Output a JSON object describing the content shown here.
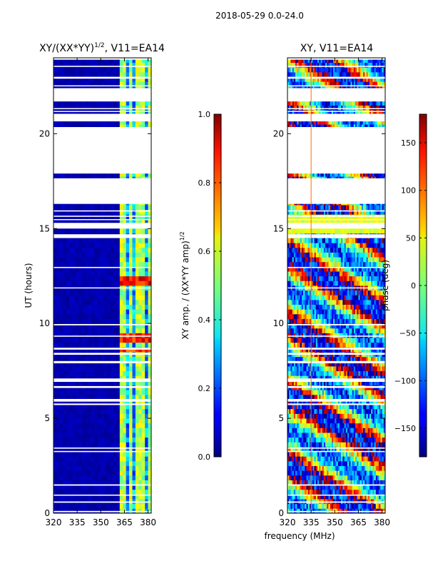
{
  "figure_title": "2018-05-29 0.0-24.0",
  "xlabel_shared": "frequency (MHz)",
  "chart_data": [
    {
      "type": "heatmap",
      "title": "XY/(XX*YY)^{1/2}, V11=EA14",
      "title_main": "XY/(XX*YY)",
      "title_sup": "1/2",
      "title_tail": ", V11=EA14",
      "ylabel": "UT (hours)",
      "x_range": [
        320,
        382
      ],
      "y_range": [
        0,
        24
      ],
      "x_ticks": [
        320,
        335,
        350,
        365,
        380
      ],
      "y_ticks": [
        0,
        5,
        10,
        15,
        20
      ],
      "colorbar": {
        "label": "XY amp. / (XX*YY amp)",
        "label_sup": "1/2",
        "range": [
          0.0,
          1.0
        ],
        "ticks": [
          "0.0",
          "0.2",
          "0.4",
          "0.6",
          "0.8",
          "1.0"
        ],
        "tick_values": [
          0.0,
          0.2,
          0.4,
          0.6,
          0.8,
          1.0
        ]
      },
      "flagged_hours": [
        [
          0.05,
          0.12
        ],
        [
          0.55,
          0.62
        ],
        [
          0.92,
          0.98
        ],
        [
          1.45,
          1.52
        ],
        [
          3.22,
          3.28
        ],
        [
          3.4,
          3.46
        ],
        [
          5.7,
          5.78
        ],
        [
          5.88,
          6.02
        ],
        [
          6.6,
          6.7
        ],
        [
          6.92,
          7.1
        ],
        [
          7.9,
          8.02
        ],
        [
          8.35,
          8.45
        ],
        [
          8.62,
          8.72
        ],
        [
          9.3,
          9.36
        ],
        [
          9.9,
          9.97
        ],
        [
          11.85,
          11.9
        ],
        [
          12.92,
          12.98
        ],
        [
          14.5,
          14.7
        ],
        [
          15.0,
          15.3
        ],
        [
          15.45,
          15.5
        ],
        [
          15.62,
          15.68
        ],
        [
          15.9,
          15.96
        ],
        [
          16.3,
          17.65
        ],
        [
          17.9,
          20.35
        ],
        [
          20.65,
          21.05
        ],
        [
          21.15,
          21.2
        ],
        [
          21.3,
          21.35
        ],
        [
          21.7,
          22.4
        ],
        [
          22.5,
          22.55
        ],
        [
          22.9,
          23.0
        ],
        [
          23.52,
          23.58
        ],
        [
          23.9,
          24.0
        ]
      ],
      "band_channels_mhz": [
        364,
        369,
        374,
        377,
        381
      ],
      "value_background": 0.02,
      "value_band": 0.35
    },
    {
      "type": "heatmap",
      "title": "XY, V11=EA14",
      "ylabel": "",
      "x_range": [
        320,
        382
      ],
      "y_range": [
        0,
        24
      ],
      "x_ticks": [
        320,
        335,
        350,
        365,
        380
      ],
      "y_ticks": [
        0,
        5,
        10,
        15,
        20
      ],
      "colorbar": {
        "label": "phase (deg)",
        "range": [
          -180,
          180
        ],
        "ticks": [
          "150",
          "100",
          "50",
          "0",
          "−50",
          "−100",
          "−150"
        ],
        "tick_values": [
          150,
          100,
          50,
          0,
          -50,
          -100,
          -150
        ]
      },
      "flagged_hours": [
        [
          0.05,
          0.12
        ],
        [
          0.55,
          0.62
        ],
        [
          0.92,
          0.98
        ],
        [
          1.45,
          1.52
        ],
        [
          3.22,
          3.28
        ],
        [
          3.4,
          3.46
        ],
        [
          5.7,
          5.78
        ],
        [
          5.88,
          6.02
        ],
        [
          6.6,
          6.7
        ],
        [
          6.92,
          7.1
        ],
        [
          7.9,
          8.02
        ],
        [
          8.35,
          8.45
        ],
        [
          8.62,
          8.72
        ],
        [
          9.3,
          9.36
        ],
        [
          9.9,
          9.97
        ],
        [
          11.85,
          11.9
        ],
        [
          12.92,
          12.98
        ],
        [
          14.5,
          14.7
        ],
        [
          15.0,
          15.3
        ],
        [
          15.45,
          15.5
        ],
        [
          15.62,
          15.68
        ],
        [
          15.9,
          15.96
        ],
        [
          16.3,
          17.65
        ],
        [
          17.9,
          20.35
        ],
        [
          20.65,
          21.05
        ],
        [
          21.15,
          21.2
        ],
        [
          21.3,
          21.35
        ],
        [
          21.7,
          22.4
        ],
        [
          22.5,
          22.55
        ],
        [
          22.9,
          23.0
        ],
        [
          23.52,
          23.58
        ],
        [
          23.9,
          24.0
        ]
      ],
      "vertical_line_mhz": 335
    }
  ]
}
